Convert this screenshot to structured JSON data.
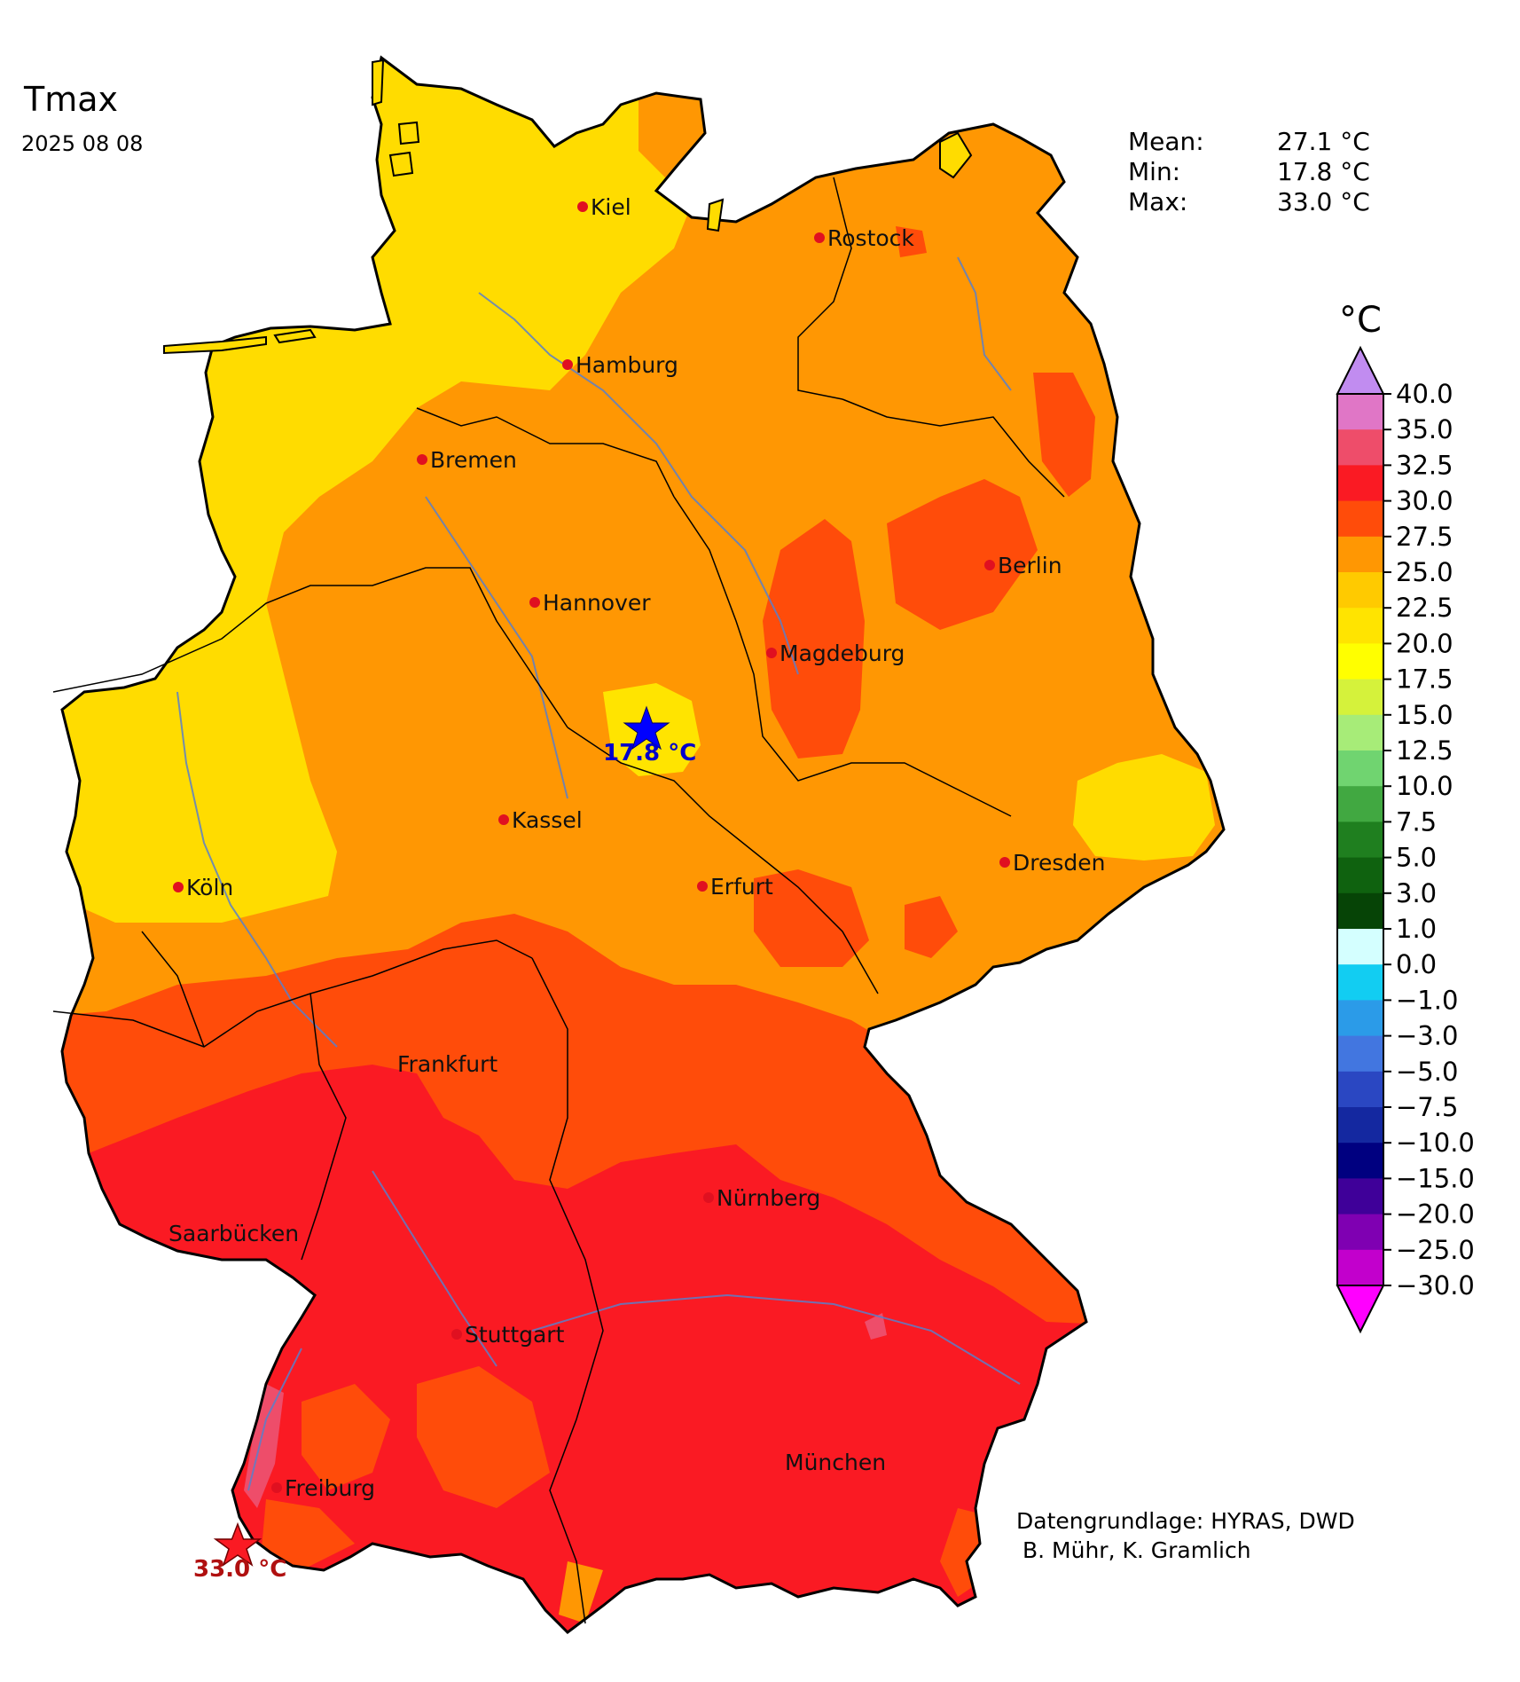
{
  "title": "Tmax",
  "date": "2025 08 08",
  "stats": [
    {
      "label": "Mean:",
      "value": "27.1 °C"
    },
    {
      "label": "Min:",
      "value": "17.8 °C"
    },
    {
      "label": "Max:",
      "value": "33.0 °C"
    }
  ],
  "legend": {
    "unit": "°C",
    "extend_max_color": "#c18cf0",
    "extend_min_color": "#ff00ff",
    "bins_top_to_bottom": [
      "#e076c6",
      "#ee4d6a",
      "#fa1a23",
      "#ff4c0a",
      "#ff9703",
      "#ffca00",
      "#ffe400",
      "#ffff00",
      "#d5f23b",
      "#a7ec78",
      "#70d470",
      "#41a841",
      "#1f7f1f",
      "#0f620f",
      "#064406",
      "#d4ffff",
      "#12cdf2",
      "#2b9be8",
      "#4276e0",
      "#2a47c2",
      "#1428a0",
      "#000080",
      "#3f0099",
      "#7f00b2",
      "#c200cc"
    ],
    "ticks_top_to_bottom": [
      "40.0",
      "35.0",
      "32.5",
      "30.0",
      "27.5",
      "25.0",
      "22.5",
      "20.0",
      "17.5",
      "15.0",
      "12.5",
      "10.0",
      "7.5",
      "5.0",
      "3.0",
      "1.0",
      "0.0",
      "−1.0",
      "−3.0",
      "−5.0",
      "−7.5",
      "−10.0",
      "−15.0",
      "−20.0",
      "−25.0",
      "−30.0"
    ]
  },
  "cities": [
    {
      "name": "Kiel"
    },
    {
      "name": "Rostock"
    },
    {
      "name": "Hamburg"
    },
    {
      "name": "Bremen"
    },
    {
      "name": "Berlin"
    },
    {
      "name": "Hannover"
    },
    {
      "name": "Magdeburg"
    },
    {
      "name": "Kassel"
    },
    {
      "name": "Dresden"
    },
    {
      "name": "Köln"
    },
    {
      "name": "Erfurt"
    },
    {
      "name": "Frankfurt"
    },
    {
      "name": "Nürnberg"
    },
    {
      "name": "Saarbücken"
    },
    {
      "name": "Stuttgart"
    },
    {
      "name": "München"
    },
    {
      "name": "Freiburg"
    }
  ],
  "min_marker": {
    "label": "17.8 °C",
    "color": "#0000cc"
  },
  "max_marker": {
    "label": "33.0 °C",
    "color": "#b01010"
  },
  "credit": {
    "line1": "Datengrundlage: HYRAS, DWD",
    "line2": "B. Mühr, K. Gramlich"
  }
}
